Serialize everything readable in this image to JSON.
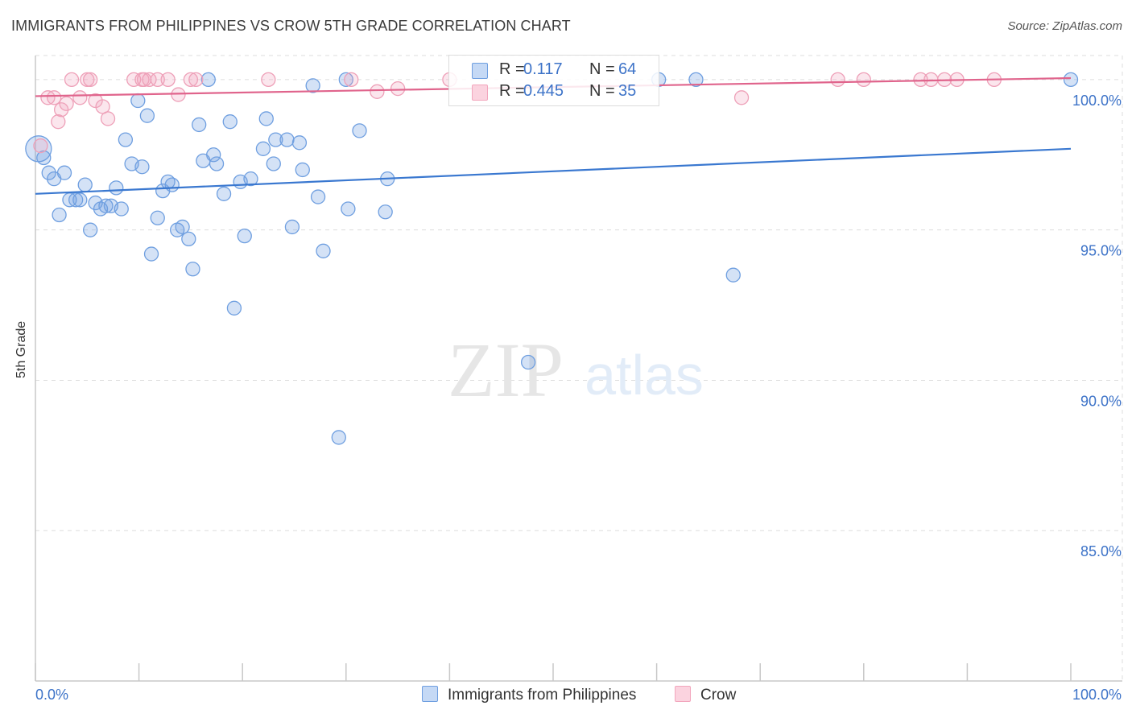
{
  "title": "IMMIGRANTS FROM PHILIPPINES VS CROW 5TH GRADE CORRELATION CHART",
  "source": "Source: ZipAtlas.com",
  "watermark": {
    "zip": "ZIP",
    "atlas": "atlas"
  },
  "legend": {
    "series1": {
      "r_label": "R =",
      "r_value": "0.117",
      "n_label": "N =",
      "n_value": "64"
    },
    "series2": {
      "r_label": "R =",
      "r_value": "0.445",
      "n_label": "N =",
      "n_value": "35"
    }
  },
  "colors": {
    "blue": "#6f9fe0",
    "blue_line": "#3a78d0",
    "pink": "#f2a6bd",
    "pink_line": "#e0648c",
    "tick_text": "#3d73c8"
  },
  "chart_data": {
    "type": "scatter",
    "title": "IMMIGRANTS FROM PHILIPPINES VS CROW 5TH GRADE CORRELATION CHART",
    "xlabel": "",
    "ylabel": "5th Grade",
    "xlim": [
      0,
      100
    ],
    "ylim": [
      80,
      100.8
    ],
    "x_tick_labels": [
      "0.0%",
      "100.0%"
    ],
    "y_ticks": [
      85,
      90,
      95,
      100
    ],
    "y_tick_labels": [
      "85.0%",
      "90.0%",
      "95.0%",
      "100.0%"
    ],
    "series": [
      {
        "name": "Immigrants from Philippines",
        "color": "#6f9fe0",
        "trend": {
          "x": [
            0,
            100
          ],
          "y": [
            96.2,
            97.7
          ]
        },
        "points": [
          [
            0.3,
            97.7
          ],
          [
            0.8,
            97.4
          ],
          [
            1.3,
            96.9
          ],
          [
            1.8,
            96.7
          ],
          [
            2.3,
            95.5
          ],
          [
            2.8,
            96.9
          ],
          [
            3.3,
            96.0
          ],
          [
            3.9,
            96.0
          ],
          [
            4.3,
            96.0
          ],
          [
            4.8,
            96.5
          ],
          [
            5.3,
            95.0
          ],
          [
            5.8,
            95.9
          ],
          [
            6.3,
            95.7
          ],
          [
            6.8,
            95.8
          ],
          [
            7.3,
            95.8
          ],
          [
            7.8,
            96.4
          ],
          [
            8.3,
            95.7
          ],
          [
            8.7,
            98.0
          ],
          [
            9.3,
            97.2
          ],
          [
            9.9,
            99.3
          ],
          [
            10.3,
            97.1
          ],
          [
            10.8,
            98.8
          ],
          [
            11.2,
            94.2
          ],
          [
            11.8,
            95.4
          ],
          [
            12.3,
            96.3
          ],
          [
            12.8,
            96.6
          ],
          [
            13.2,
            96.5
          ],
          [
            13.7,
            95.0
          ],
          [
            14.2,
            95.1
          ],
          [
            14.8,
            94.7
          ],
          [
            15.2,
            93.7
          ],
          [
            15.8,
            98.5
          ],
          [
            16.2,
            97.3
          ],
          [
            16.7,
            100.0
          ],
          [
            17.2,
            97.5
          ],
          [
            17.5,
            97.2
          ],
          [
            18.2,
            96.2
          ],
          [
            18.8,
            98.6
          ],
          [
            19.2,
            92.4
          ],
          [
            19.8,
            96.6
          ],
          [
            20.2,
            94.8
          ],
          [
            20.8,
            96.7
          ],
          [
            22.0,
            97.7
          ],
          [
            22.3,
            98.7
          ],
          [
            23.0,
            97.2
          ],
          [
            23.2,
            98.0
          ],
          [
            24.3,
            98.0
          ],
          [
            24.8,
            95.1
          ],
          [
            25.5,
            97.9
          ],
          [
            25.8,
            97.0
          ],
          [
            26.8,
            99.8
          ],
          [
            27.3,
            96.1
          ],
          [
            27.8,
            94.3
          ],
          [
            29.3,
            88.1
          ],
          [
            30.0,
            100.0
          ],
          [
            30.2,
            95.7
          ],
          [
            31.3,
            98.3
          ],
          [
            33.8,
            95.6
          ],
          [
            34.0,
            96.7
          ],
          [
            47.6,
            90.6
          ],
          [
            60.2,
            100.0
          ],
          [
            63.8,
            100.0
          ],
          [
            67.4,
            93.5
          ],
          [
            100.0,
            100.0
          ]
        ]
      },
      {
        "name": "Crow",
        "color": "#f2a6bd",
        "trend": {
          "x": [
            0,
            100
          ],
          "y": [
            99.45,
            100.05
          ]
        },
        "points": [
          [
            0.5,
            97.8
          ],
          [
            1.2,
            99.4
          ],
          [
            1.8,
            99.4
          ],
          [
            2.2,
            98.6
          ],
          [
            2.5,
            99.0
          ],
          [
            3.0,
            99.2
          ],
          [
            3.5,
            100.0
          ],
          [
            4.3,
            99.4
          ],
          [
            5.0,
            100.0
          ],
          [
            5.3,
            100.0
          ],
          [
            5.8,
            99.3
          ],
          [
            6.5,
            99.1
          ],
          [
            7.0,
            98.7
          ],
          [
            9.5,
            100.0
          ],
          [
            10.3,
            100.0
          ],
          [
            10.5,
            100.0
          ],
          [
            11.0,
            100.0
          ],
          [
            11.8,
            100.0
          ],
          [
            12.8,
            100.0
          ],
          [
            13.8,
            99.5
          ],
          [
            15.0,
            100.0
          ],
          [
            15.5,
            100.0
          ],
          [
            22.5,
            100.0
          ],
          [
            30.5,
            100.0
          ],
          [
            33.0,
            99.6
          ],
          [
            35.0,
            99.7
          ],
          [
            40.0,
            100.0
          ],
          [
            68.2,
            99.4
          ],
          [
            77.5,
            100.0
          ],
          [
            80.0,
            100.0
          ],
          [
            85.5,
            100.0
          ],
          [
            86.5,
            100.0
          ],
          [
            87.8,
            100.0
          ],
          [
            89.0,
            100.0
          ],
          [
            92.6,
            100.0
          ]
        ]
      }
    ]
  }
}
